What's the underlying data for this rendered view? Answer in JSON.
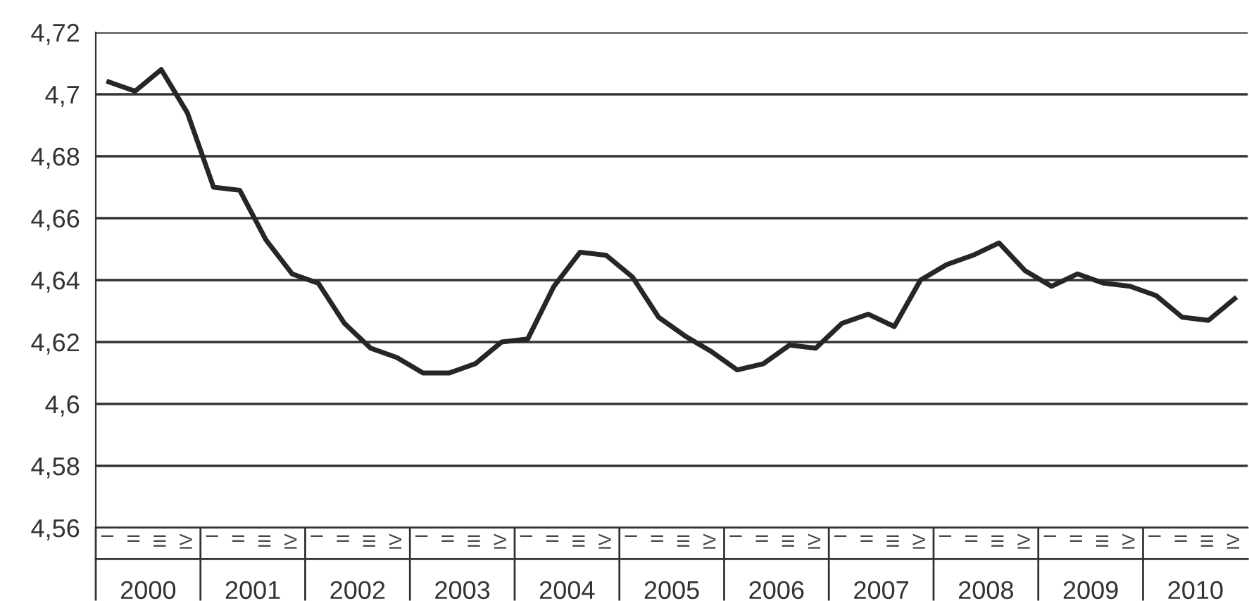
{
  "chart_data": {
    "type": "line",
    "color": "#262626",
    "categories": [
      "I",
      "II",
      "III",
      "IV",
      "I",
      "II",
      "III",
      "IV",
      "I",
      "II",
      "III",
      "IV",
      "I",
      "II",
      "III",
      "IV",
      "I",
      "II",
      "III",
      "IV",
      "I",
      "II",
      "III",
      "IV",
      "I",
      "II",
      "III",
      "IV",
      "I",
      "II",
      "III",
      "IV",
      "I",
      "II",
      "III",
      "IV",
      "I",
      "II",
      "III",
      "IV",
      "I",
      "II",
      "III",
      "IV"
    ],
    "values": [
      4.704,
      4.701,
      4.708,
      4.694,
      4.67,
      4.669,
      4.653,
      4.642,
      4.639,
      4.626,
      4.618,
      4.615,
      4.61,
      4.61,
      4.613,
      4.62,
      4.621,
      4.638,
      4.649,
      4.648,
      4.641,
      4.628,
      4.622,
      4.617,
      4.611,
      4.613,
      4.619,
      4.618,
      4.626,
      4.629,
      4.625,
      4.64,
      4.645,
      4.648,
      4.652,
      4.643,
      4.638,
      4.642,
      4.639,
      4.638,
      4.635,
      4.628,
      4.627,
      4.634
    ],
    "annotations": [
      "2000",
      "2001",
      "2002",
      "2003",
      "2004",
      "2005",
      "2006",
      "2007",
      "2008",
      "2009",
      "2010"
    ],
    "ylim": [
      4.56,
      4.72
    ],
    "yticks": [
      {
        "value": 4.56,
        "label": "4,56"
      },
      {
        "value": 4.58,
        "label": "4,58"
      },
      {
        "value": 4.6,
        "label": "4,6"
      },
      {
        "value": 4.62,
        "label": "4,62"
      },
      {
        "value": 4.64,
        "label": "4,64"
      },
      {
        "value": 4.66,
        "label": "4,66"
      },
      {
        "value": 4.68,
        "label": "4,68"
      },
      {
        "value": 4.7,
        "label": "4,7"
      },
      {
        "value": 4.72,
        "label": "4,72"
      }
    ],
    "grid": "y",
    "marker": "none",
    "line_style": "solid"
  }
}
